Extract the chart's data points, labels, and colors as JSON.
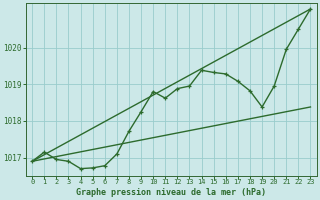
{
  "xlabel": "Graphe pression niveau de la mer (hPa)",
  "xlim": [
    -0.5,
    23.5
  ],
  "ylim": [
    1016.5,
    1021.2
  ],
  "yticks": [
    1017,
    1018,
    1019,
    1020
  ],
  "xticks": [
    0,
    1,
    2,
    3,
    4,
    5,
    6,
    7,
    8,
    9,
    10,
    11,
    12,
    13,
    14,
    15,
    16,
    17,
    18,
    19,
    20,
    21,
    22,
    23
  ],
  "bg_color": "#cce8e8",
  "grid_color": "#99cccc",
  "line_color": "#2d6b2d",
  "line1_x": [
    0,
    1,
    2,
    3,
    4,
    5,
    6,
    7,
    8,
    9,
    10,
    11,
    12,
    13,
    14,
    15,
    16,
    17,
    18,
    19,
    20,
    21,
    22,
    23
  ],
  "line1_y": [
    1016.9,
    1017.15,
    1016.95,
    1016.9,
    1016.7,
    1016.72,
    1016.78,
    1017.1,
    1017.72,
    1018.25,
    1018.8,
    1018.62,
    1018.88,
    1018.95,
    1019.38,
    1019.32,
    1019.28,
    1019.08,
    1018.82,
    1018.38,
    1018.95,
    1019.95,
    1020.5,
    1021.05
  ],
  "line2_x": [
    0,
    23
  ],
  "line2_y": [
    1016.9,
    1021.05
  ],
  "line3_x": [
    0,
    23
  ],
  "line3_y": [
    1016.9,
    1018.38
  ],
  "marker_style": "+",
  "marker_size": 3.5,
  "marker_lw": 0.9,
  "linewidth": 1.0
}
